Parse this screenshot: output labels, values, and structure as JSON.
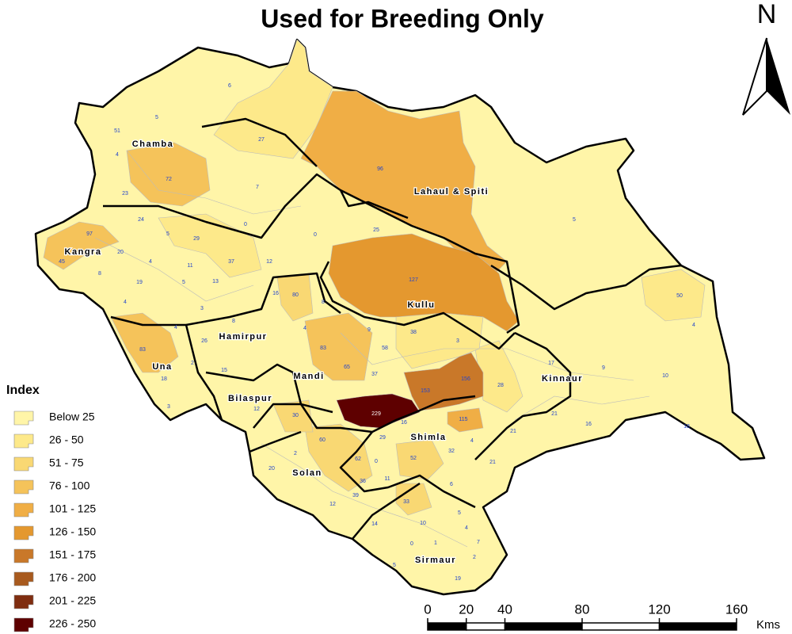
{
  "title": "Used for Breeding Only",
  "north": "N",
  "legend": {
    "title": "Index",
    "items": [
      {
        "label": "Below 25",
        "color": "#fff5a8"
      },
      {
        "label": "26 - 50",
        "color": "#fde98a"
      },
      {
        "label": "51 - 75",
        "color": "#f9d873"
      },
      {
        "label": "76 - 100",
        "color": "#f5c35a"
      },
      {
        "label": "101 - 125",
        "color": "#f0ae45"
      },
      {
        "label": "126 - 150",
        "color": "#e4982f"
      },
      {
        "label": "151 - 175",
        "color": "#c97829"
      },
      {
        "label": "176 - 200",
        "color": "#a85a1e"
      },
      {
        "label": "201 - 225",
        "color": "#7f2d10"
      },
      {
        "label": "226 - 250",
        "color": "#5e0000"
      }
    ]
  },
  "districts": [
    "Chamba",
    "Lahaul & Spiti",
    "Kangra",
    "Kullu",
    "Hamirpur",
    "Una",
    "Mandi",
    "Kinnaur",
    "Bilaspur",
    "Shimla",
    "Solan",
    "Sirmaur"
  ],
  "values": [
    6,
    5,
    51,
    27,
    96,
    4,
    72,
    7,
    23,
    24,
    0,
    0,
    25,
    5,
    97,
    5,
    29,
    45,
    20,
    4,
    11,
    37,
    12,
    127,
    8,
    19,
    5,
    13,
    16,
    80,
    8,
    50,
    4,
    3,
    4,
    9,
    38,
    4,
    8,
    4,
    3,
    17,
    26,
    83,
    83,
    58,
    9,
    2,
    65,
    10,
    15,
    37,
    18,
    156,
    153,
    28,
    3,
    12,
    229,
    30,
    115,
    21,
    16,
    18,
    16,
    21,
    60,
    29,
    4,
    2,
    62,
    0,
    52,
    32,
    21,
    20,
    36,
    11,
    6,
    39,
    33,
    12,
    5,
    14,
    10,
    4,
    0,
    1,
    7,
    2,
    19,
    5
  ],
  "scale": {
    "ticks": [
      0,
      20,
      40,
      80,
      120,
      160
    ],
    "unit": "Kms"
  }
}
